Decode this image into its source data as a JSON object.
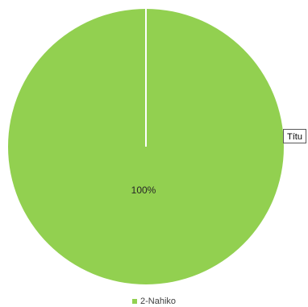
{
  "chart_data": {
    "type": "pie",
    "categories": [
      "2-Nahiko"
    ],
    "values": [
      100
    ],
    "data_labels": [
      "100%"
    ],
    "colors": [
      "#92d050"
    ],
    "legend_position": "bottom",
    "title": ""
  },
  "tooltip": {
    "text": "Títu"
  },
  "legend": {
    "items": [
      {
        "label": "2-Nahiko",
        "color": "#92d050"
      }
    ]
  }
}
